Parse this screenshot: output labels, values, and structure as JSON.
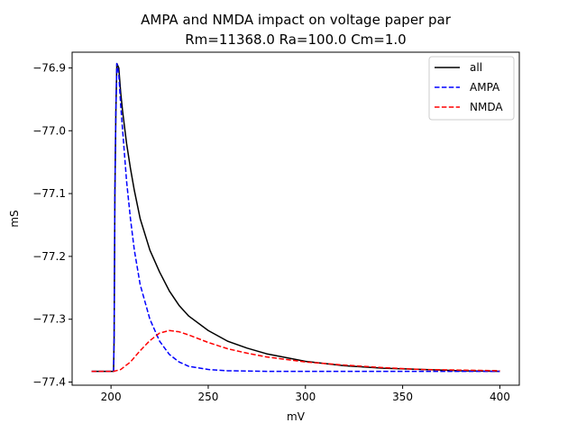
{
  "chart_data": {
    "type": "line",
    "title": "AMPA and NMDA impact on voltage paper par",
    "subtitle": "Rm=11368.0 Ra=100.0 Cm=1.0",
    "xlabel": "mV",
    "ylabel": "mS",
    "xlim": [
      180,
      410
    ],
    "ylim": [
      -77.405,
      -76.875
    ],
    "xticks": [
      200,
      250,
      300,
      350,
      400
    ],
    "xtick_labels": [
      "200",
      "250",
      "300",
      "350",
      "400"
    ],
    "yticks": [
      -77.4,
      -77.3,
      -77.2,
      -77.1,
      -77.0,
      -76.9
    ],
    "ytick_labels": [
      "−77.4",
      "−77.3",
      "−77.2",
      "−77.1",
      "−77.0",
      "−76.9"
    ],
    "grid": false,
    "legend_position": "top-right",
    "series": [
      {
        "name": "all",
        "color": "#000000",
        "dash": "solid",
        "x": [
          190,
          201.3,
          201.6,
          202.0,
          202.5,
          203.0,
          204,
          205,
          206,
          208,
          210,
          212,
          215,
          220,
          225,
          230,
          235,
          240,
          250,
          260,
          270,
          280,
          300,
          320,
          340,
          360,
          380,
          400
        ],
        "y": [
          -77.383,
          -77.383,
          -77.33,
          -77.1,
          -76.97,
          -76.893,
          -76.9,
          -76.94,
          -76.97,
          -77.02,
          -77.06,
          -77.095,
          -77.14,
          -77.19,
          -77.225,
          -77.255,
          -77.278,
          -77.295,
          -77.318,
          -77.335,
          -77.346,
          -77.355,
          -77.367,
          -77.374,
          -77.378,
          -77.38,
          -77.382,
          -77.383
        ]
      },
      {
        "name": "AMPA",
        "color": "#0000ff",
        "dash": "dashed",
        "x": [
          190,
          201.3,
          201.6,
          202.0,
          202.5,
          203.0,
          204,
          205,
          206,
          208,
          210,
          212,
          215,
          220,
          225,
          230,
          235,
          240,
          250,
          260,
          280,
          300,
          400
        ],
        "y": [
          -77.383,
          -77.383,
          -77.33,
          -77.1,
          -76.97,
          -76.893,
          -76.91,
          -76.96,
          -77.0,
          -77.08,
          -77.14,
          -77.19,
          -77.245,
          -77.3,
          -77.335,
          -77.356,
          -77.368,
          -77.375,
          -77.38,
          -77.382,
          -77.383,
          -77.383,
          -77.383
        ]
      },
      {
        "name": "NMDA",
        "color": "#ff0000",
        "dash": "dashed",
        "x": [
          190,
          201.3,
          205,
          210,
          215,
          220,
          225,
          230,
          235,
          240,
          250,
          260,
          270,
          280,
          300,
          320,
          340,
          360,
          380,
          400
        ],
        "y": [
          -77.383,
          -77.383,
          -77.38,
          -77.368,
          -77.35,
          -77.334,
          -77.322,
          -77.318,
          -77.32,
          -77.325,
          -77.337,
          -77.347,
          -77.354,
          -77.36,
          -77.368,
          -77.373,
          -77.377,
          -77.38,
          -77.381,
          -77.382
        ]
      }
    ]
  }
}
